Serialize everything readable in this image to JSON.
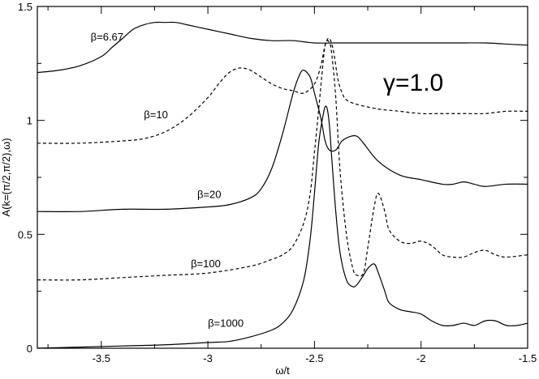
{
  "chart_data": {
    "type": "line",
    "xlabel": "ω/t",
    "ylabel": "A(k=(π/2,π/2),ω)",
    "xlim": [
      -3.8,
      -1.5
    ],
    "ylim": [
      0,
      1.5
    ],
    "xticks": [
      -3.5,
      -3,
      -2.5,
      -2,
      -1.5
    ],
    "xtick_labels": [
      "-3.5",
      "-3",
      "-2.5",
      "-2",
      "-1.5"
    ],
    "yticks": [
      0,
      0.5,
      1,
      1.5
    ],
    "ytick_labels": [
      "0",
      "0.5",
      "1",
      "1.5"
    ],
    "grid": false,
    "legend": "none",
    "annotation": "γ=1.0",
    "series": [
      {
        "name": "β=6.67",
        "style": "solid",
        "label_pos": [
          -3.55,
          1.35
        ],
        "x": [
          -3.8,
          -3.7,
          -3.6,
          -3.5,
          -3.45,
          -3.4,
          -3.35,
          -3.3,
          -3.25,
          -3.2,
          -3.15,
          -3.1,
          -3.05,
          -3.0,
          -2.9,
          -2.8,
          -2.7,
          -2.6,
          -2.5,
          -2.4,
          -2.3,
          -2.2,
          -2.1,
          -2.0,
          -1.9,
          -1.8,
          -1.7,
          -1.6,
          -1.5
        ],
        "y": [
          1.21,
          1.22,
          1.24,
          1.28,
          1.32,
          1.36,
          1.4,
          1.42,
          1.43,
          1.43,
          1.43,
          1.42,
          1.41,
          1.4,
          1.38,
          1.36,
          1.35,
          1.35,
          1.34,
          1.34,
          1.34,
          1.34,
          1.34,
          1.34,
          1.34,
          1.34,
          1.34,
          1.335,
          1.33
        ]
      },
      {
        "name": "β=10",
        "style": "dashed",
        "label_pos": [
          -3.3,
          1.01
        ],
        "x": [
          -3.8,
          -3.6,
          -3.4,
          -3.3,
          -3.2,
          -3.1,
          -3.0,
          -2.95,
          -2.9,
          -2.85,
          -2.8,
          -2.75,
          -2.7,
          -2.65,
          -2.6,
          -2.55,
          -2.5,
          -2.47,
          -2.45,
          -2.43,
          -2.41,
          -2.39,
          -2.37,
          -2.35,
          -2.3,
          -2.2,
          -2.1,
          -2.0,
          -1.9,
          -1.8,
          -1.7,
          -1.6,
          -1.5
        ],
        "y": [
          0.9,
          0.9,
          0.91,
          0.92,
          0.95,
          1.01,
          1.1,
          1.16,
          1.21,
          1.23,
          1.22,
          1.19,
          1.16,
          1.14,
          1.13,
          1.12,
          1.16,
          1.24,
          1.33,
          1.36,
          1.3,
          1.18,
          1.12,
          1.09,
          1.07,
          1.05,
          1.04,
          1.03,
          1.03,
          1.03,
          1.03,
          1.04,
          1.04
        ]
      },
      {
        "name": "β=20",
        "style": "solid",
        "label_pos": [
          -3.05,
          0.66
        ],
        "x": [
          -3.8,
          -3.6,
          -3.4,
          -3.2,
          -3.0,
          -2.9,
          -2.8,
          -2.75,
          -2.7,
          -2.65,
          -2.6,
          -2.57,
          -2.55,
          -2.52,
          -2.5,
          -2.47,
          -2.45,
          -2.43,
          -2.4,
          -2.37,
          -2.33,
          -2.3,
          -2.27,
          -2.2,
          -2.1,
          -2.0,
          -1.9,
          -1.85,
          -1.8,
          -1.75,
          -1.7,
          -1.6,
          -1.5
        ],
        "y": [
          0.6,
          0.6,
          0.61,
          0.61,
          0.62,
          0.63,
          0.66,
          0.7,
          0.79,
          0.94,
          1.12,
          1.2,
          1.22,
          1.19,
          1.12,
          1.01,
          0.91,
          0.87,
          0.87,
          0.91,
          0.93,
          0.93,
          0.9,
          0.82,
          0.76,
          0.74,
          0.72,
          0.72,
          0.73,
          0.72,
          0.71,
          0.72,
          0.72
        ]
      },
      {
        "name": "β=100",
        "style": "dashed",
        "label_pos": [
          -3.08,
          0.355
        ],
        "x": [
          -3.8,
          -3.6,
          -3.4,
          -3.2,
          -3.0,
          -2.8,
          -2.7,
          -2.65,
          -2.6,
          -2.55,
          -2.52,
          -2.5,
          -2.48,
          -2.46,
          -2.45,
          -2.44,
          -2.43,
          -2.42,
          -2.4,
          -2.38,
          -2.35,
          -2.32,
          -2.3,
          -2.27,
          -2.25,
          -2.22,
          -2.2,
          -2.17,
          -2.15,
          -2.1,
          -2.05,
          -2.0,
          -1.95,
          -1.9,
          -1.85,
          -1.8,
          -1.75,
          -1.7,
          -1.65,
          -1.6,
          -1.5
        ],
        "y": [
          0.3,
          0.3,
          0.31,
          0.32,
          0.33,
          0.36,
          0.39,
          0.41,
          0.45,
          0.55,
          0.68,
          0.86,
          1.05,
          1.25,
          1.33,
          1.35,
          1.34,
          1.3,
          1.1,
          0.78,
          0.5,
          0.35,
          0.32,
          0.33,
          0.44,
          0.62,
          0.68,
          0.6,
          0.52,
          0.47,
          0.46,
          0.47,
          0.45,
          0.41,
          0.4,
          0.4,
          0.42,
          0.43,
          0.41,
          0.4,
          0.41
        ]
      },
      {
        "name": "β=1000",
        "style": "solid",
        "label_pos": [
          -3.0,
          0.095
        ],
        "x": [
          -3.8,
          -3.6,
          -3.4,
          -3.2,
          -3.0,
          -2.9,
          -2.8,
          -2.7,
          -2.65,
          -2.6,
          -2.55,
          -2.52,
          -2.5,
          -2.48,
          -2.46,
          -2.45,
          -2.44,
          -2.43,
          -2.42,
          -2.4,
          -2.38,
          -2.35,
          -2.32,
          -2.3,
          -2.27,
          -2.25,
          -2.22,
          -2.2,
          -2.17,
          -2.15,
          -2.1,
          -2.05,
          -2.0,
          -1.95,
          -1.9,
          -1.85,
          -1.8,
          -1.75,
          -1.7,
          -1.65,
          -1.6,
          -1.55,
          -1.5
        ],
        "y": [
          0,
          0.005,
          0.01,
          0.015,
          0.025,
          0.03,
          0.05,
          0.08,
          0.11,
          0.17,
          0.3,
          0.48,
          0.68,
          0.9,
          1.02,
          1.06,
          1.05,
          0.98,
          0.85,
          0.6,
          0.42,
          0.3,
          0.27,
          0.28,
          0.32,
          0.35,
          0.37,
          0.33,
          0.25,
          0.2,
          0.17,
          0.16,
          0.15,
          0.12,
          0.1,
          0.1,
          0.11,
          0.1,
          0.12,
          0.12,
          0.1,
          0.1,
          0.11
        ]
      }
    ]
  }
}
